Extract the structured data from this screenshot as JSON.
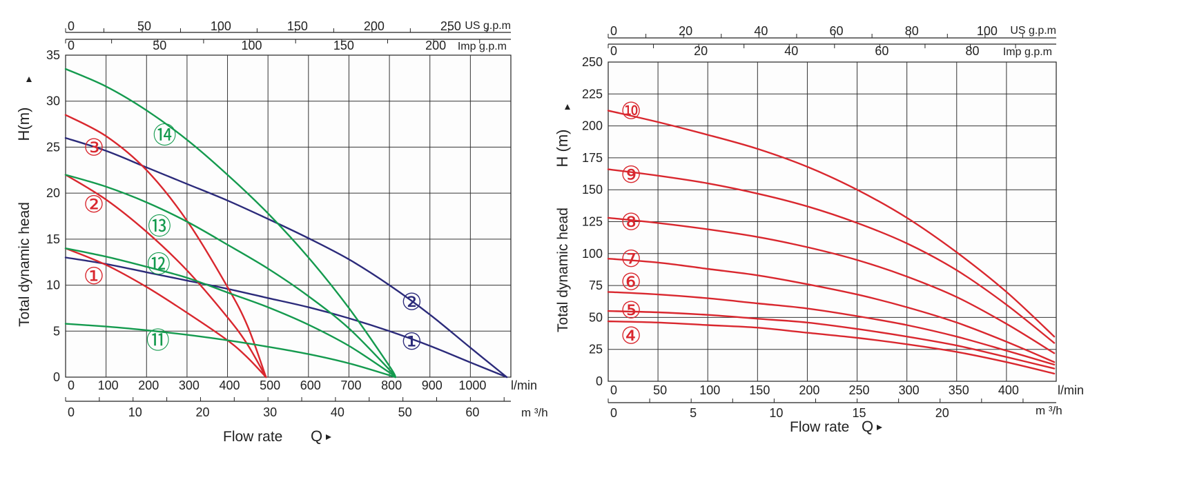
{
  "chart_data": [
    {
      "type": "line",
      "ylabel": "Total dynamic head",
      "ylabel_unit": "H(m)",
      "xlabel": "Flow rate",
      "xlabel_symbol": "Q",
      "ylim": [
        0,
        35
      ],
      "y_ticks": [
        0,
        5,
        10,
        15,
        20,
        25,
        30,
        35
      ],
      "x_unit": "l/min",
      "xlim": [
        0,
        1100
      ],
      "x_ticks": [
        0,
        100,
        200,
        300,
        400,
        500,
        600,
        700,
        800,
        900,
        1000
      ],
      "m3h_unit": "m ³/h",
      "m3h_ticks": [
        0,
        10,
        20,
        30,
        40,
        50,
        60
      ],
      "us_unit": "US g.p.m",
      "us_ticks": [
        0,
        50,
        100,
        150,
        200,
        250
      ],
      "imp_unit": "Imp g.p.m",
      "imp_ticks": [
        0,
        50,
        100,
        150,
        200
      ],
      "grid": true,
      "series": [
        {
          "name": "1",
          "color": "#2b2a7a",
          "x": [
            0,
            100,
            200,
            300,
            400,
            500,
            600,
            700,
            800,
            900,
            1000,
            1090
          ],
          "y": [
            13.0,
            12.3,
            11.4,
            10.5,
            9.6,
            8.6,
            7.6,
            6.4,
            5.0,
            3.4,
            1.6,
            0
          ]
        },
        {
          "name": "2",
          "color": "#2b2a7a",
          "x": [
            0,
            100,
            200,
            300,
            400,
            500,
            600,
            700,
            800,
            900,
            1000,
            1090
          ],
          "y": [
            26.0,
            24.6,
            22.8,
            21.0,
            19.2,
            17.2,
            15.1,
            12.8,
            10.0,
            6.8,
            3.2,
            0
          ]
        },
        {
          "name": "3",
          "color": "#d9272e",
          "x": [
            0,
            100,
            200,
            300,
            400,
            450,
            495
          ],
          "y": [
            28.5,
            26.2,
            22.5,
            17.0,
            9.8,
            5.5,
            0
          ]
        },
        {
          "name": "2",
          "color": "#d9272e",
          "x": [
            0,
            100,
            200,
            300,
            400,
            450,
            495
          ],
          "y": [
            22.0,
            19.3,
            15.8,
            11.6,
            6.5,
            3.5,
            0
          ]
        },
        {
          "name": "1",
          "color": "#d9272e",
          "x": [
            0,
            100,
            200,
            300,
            400,
            450,
            495
          ],
          "y": [
            14.0,
            12.2,
            9.8,
            7.0,
            4.0,
            2.1,
            0
          ]
        },
        {
          "name": "14",
          "color": "#149a4e",
          "x": [
            0,
            100,
            200,
            300,
            400,
            500,
            600,
            700,
            800,
            815
          ],
          "y": [
            33.5,
            31.6,
            29.0,
            25.8,
            22.0,
            17.8,
            13.0,
            7.5,
            1.2,
            0
          ]
        },
        {
          "name": "13",
          "color": "#149a4e",
          "x": [
            0,
            100,
            200,
            300,
            400,
            500,
            600,
            700,
            800,
            815
          ],
          "y": [
            22.0,
            20.7,
            19.0,
            16.9,
            14.4,
            11.8,
            8.8,
            5.3,
            0.8,
            0
          ]
        },
        {
          "name": "12",
          "color": "#149a4e",
          "x": [
            0,
            100,
            200,
            300,
            400,
            500,
            600,
            700,
            800,
            815
          ],
          "y": [
            14.0,
            13.1,
            12.0,
            10.8,
            9.2,
            7.6,
            5.7,
            3.4,
            0.5,
            0
          ]
        },
        {
          "name": "11",
          "color": "#149a4e",
          "x": [
            0,
            100,
            200,
            300,
            400,
            500,
            600,
            700,
            800,
            815
          ],
          "y": [
            5.8,
            5.5,
            5.1,
            4.6,
            4.0,
            3.3,
            2.5,
            1.5,
            0.2,
            0
          ]
        }
      ],
      "markers": [
        {
          "label": "③",
          "x": 70,
          "y": 25.0,
          "color": "#d9272e"
        },
        {
          "label": "②",
          "x": 70,
          "y": 18.8,
          "color": "#d9272e"
        },
        {
          "label": "①",
          "x": 70,
          "y": 11.0,
          "color": "#d9272e"
        },
        {
          "label": "⑭",
          "x": 245,
          "y": 26.3,
          "color": "#149a4e"
        },
        {
          "label": "⑬",
          "x": 232,
          "y": 16.4,
          "color": "#149a4e"
        },
        {
          "label": "⑫",
          "x": 230,
          "y": 12.3,
          "color": "#149a4e"
        },
        {
          "label": "⑪",
          "x": 228,
          "y": 4.0,
          "color": "#149a4e"
        },
        {
          "label": "②",
          "x": 855,
          "y": 8.2,
          "color": "#2b2a7a"
        },
        {
          "label": "①",
          "x": 855,
          "y": 3.9,
          "color": "#2b2a7a"
        }
      ]
    },
    {
      "type": "line",
      "ylabel": "Total dynamic head",
      "ylabel_unit": "H (m)",
      "xlabel": "Flow rate",
      "xlabel_symbol": "Q",
      "ylim": [
        0,
        250
      ],
      "y_ticks": [
        0,
        25,
        50,
        75,
        100,
        125,
        150,
        175,
        200,
        225,
        250
      ],
      "x_unit": "l/min",
      "xlim": [
        0,
        450
      ],
      "x_ticks": [
        0,
        50,
        100,
        150,
        200,
        250,
        300,
        350,
        400
      ],
      "m3h_unit": "m ³/h",
      "m3h_ticks": [
        0,
        5,
        10,
        15,
        20
      ],
      "us_unit": "US g.p.m",
      "us_ticks": [
        0,
        20,
        40,
        60,
        80,
        100
      ],
      "imp_unit": "Imp g.p.m",
      "imp_ticks": [
        0,
        20,
        40,
        60,
        80
      ],
      "grid": true,
      "series": [
        {
          "name": "10",
          "color": "#d9272e",
          "x": [
            0,
            50,
            100,
            150,
            200,
            250,
            300,
            350,
            400,
            448
          ],
          "y": [
            212,
            203,
            193,
            182,
            168,
            150,
            128,
            101,
            70,
            35
          ]
        },
        {
          "name": "9",
          "color": "#d9272e",
          "x": [
            0,
            50,
            100,
            150,
            200,
            250,
            300,
            350,
            400,
            448
          ],
          "y": [
            166,
            161,
            155,
            147,
            137,
            124,
            108,
            87,
            60,
            30
          ]
        },
        {
          "name": "8",
          "color": "#d9272e",
          "x": [
            0,
            50,
            100,
            150,
            200,
            250,
            300,
            350,
            400,
            448
          ],
          "y": [
            128,
            124,
            119,
            113,
            105,
            95,
            82,
            66,
            45,
            22
          ]
        },
        {
          "name": "7",
          "color": "#d9272e",
          "x": [
            0,
            50,
            100,
            150,
            200,
            250,
            300,
            350,
            400,
            448
          ],
          "y": [
            96,
            93,
            88,
            83,
            76,
            68,
            58,
            46,
            31,
            15
          ]
        },
        {
          "name": "6",
          "color": "#d9272e",
          "x": [
            0,
            50,
            100,
            150,
            200,
            250,
            300,
            350,
            400,
            448
          ],
          "y": [
            70,
            68,
            65,
            61,
            57,
            51,
            44,
            35,
            24,
            13
          ]
        },
        {
          "name": "5",
          "color": "#d9272e",
          "x": [
            0,
            50,
            100,
            150,
            200,
            250,
            300,
            350,
            400,
            448
          ],
          "y": [
            55,
            54,
            52,
            49,
            46,
            41,
            35,
            28,
            19,
            10
          ]
        },
        {
          "name": "4",
          "color": "#d9272e",
          "x": [
            0,
            50,
            100,
            150,
            200,
            250,
            300,
            350,
            400,
            448
          ],
          "y": [
            47,
            46,
            44,
            42,
            38,
            34,
            29,
            23,
            15,
            6
          ]
        }
      ],
      "markers": [
        {
          "label": "⑩",
          "x": 23,
          "y": 212,
          "color": "#d9272e"
        },
        {
          "label": "⑨",
          "x": 23,
          "y": 162,
          "color": "#d9272e"
        },
        {
          "label": "⑧",
          "x": 23,
          "y": 125,
          "color": "#d9272e"
        },
        {
          "label": "⑦",
          "x": 23,
          "y": 96,
          "color": "#d9272e"
        },
        {
          "label": "⑥",
          "x": 23,
          "y": 78,
          "color": "#d9272e"
        },
        {
          "label": "⑤",
          "x": 23,
          "y": 56,
          "color": "#d9272e"
        },
        {
          "label": "④",
          "x": 23,
          "y": 36,
          "color": "#d9272e"
        }
      ]
    }
  ]
}
